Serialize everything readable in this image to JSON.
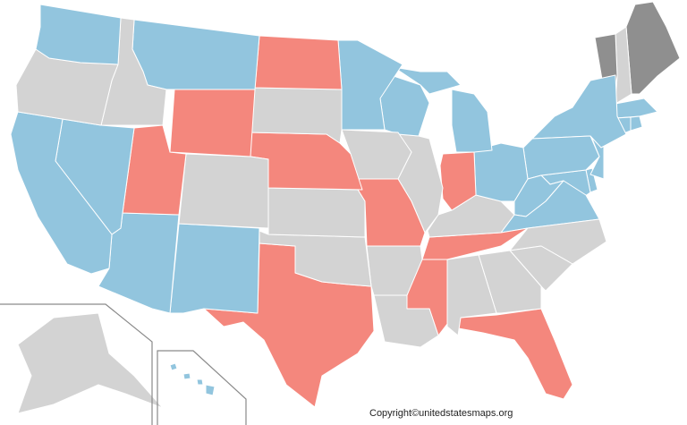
{
  "copyright": "Copyright©unitedstatesmaps.org",
  "colors": {
    "blue": "#92c5de",
    "red": "#f4877d",
    "gray": "#d3d3d3",
    "darkgray": "#8f8f8f",
    "border": "#ffffff"
  },
  "states": [
    {
      "id": "WA",
      "group": "blue"
    },
    {
      "id": "OR",
      "group": "gray"
    },
    {
      "id": "CA",
      "group": "blue"
    },
    {
      "id": "ID",
      "group": "gray"
    },
    {
      "id": "NV",
      "group": "blue"
    },
    {
      "id": "MT",
      "group": "blue"
    },
    {
      "id": "WY",
      "group": "red"
    },
    {
      "id": "UT",
      "group": "red"
    },
    {
      "id": "AZ",
      "group": "blue"
    },
    {
      "id": "CO",
      "group": "gray"
    },
    {
      "id": "NM",
      "group": "blue"
    },
    {
      "id": "ND",
      "group": "red"
    },
    {
      "id": "SD",
      "group": "gray"
    },
    {
      "id": "NE",
      "group": "red"
    },
    {
      "id": "KS",
      "group": "gray"
    },
    {
      "id": "OK",
      "group": "gray"
    },
    {
      "id": "TX",
      "group": "red"
    },
    {
      "id": "MN",
      "group": "blue"
    },
    {
      "id": "IA",
      "group": "gray"
    },
    {
      "id": "MO",
      "group": "red"
    },
    {
      "id": "AR",
      "group": "gray"
    },
    {
      "id": "LA",
      "group": "gray"
    },
    {
      "id": "WI",
      "group": "blue"
    },
    {
      "id": "IL",
      "group": "gray"
    },
    {
      "id": "MI",
      "group": "blue"
    },
    {
      "id": "IN",
      "group": "red"
    },
    {
      "id": "OH",
      "group": "blue"
    },
    {
      "id": "KY",
      "group": "gray"
    },
    {
      "id": "TN",
      "group": "red"
    },
    {
      "id": "MS",
      "group": "red"
    },
    {
      "id": "AL",
      "group": "gray"
    },
    {
      "id": "GA",
      "group": "gray"
    },
    {
      "id": "FL",
      "group": "red"
    },
    {
      "id": "SC",
      "group": "gray"
    },
    {
      "id": "NC",
      "group": "gray"
    },
    {
      "id": "VA",
      "group": "blue"
    },
    {
      "id": "WV",
      "group": "blue"
    },
    {
      "id": "PA",
      "group": "blue"
    },
    {
      "id": "NY",
      "group": "blue"
    },
    {
      "id": "NJ",
      "group": "blue"
    },
    {
      "id": "MD",
      "group": "blue"
    },
    {
      "id": "DE",
      "group": "blue"
    },
    {
      "id": "CT",
      "group": "blue"
    },
    {
      "id": "RI",
      "group": "blue"
    },
    {
      "id": "MA",
      "group": "blue"
    },
    {
      "id": "VT",
      "group": "darkgray"
    },
    {
      "id": "NH",
      "group": "gray"
    },
    {
      "id": "ME",
      "group": "darkgray"
    },
    {
      "id": "AK",
      "group": "gray"
    },
    {
      "id": "HI",
      "group": "blue"
    }
  ]
}
